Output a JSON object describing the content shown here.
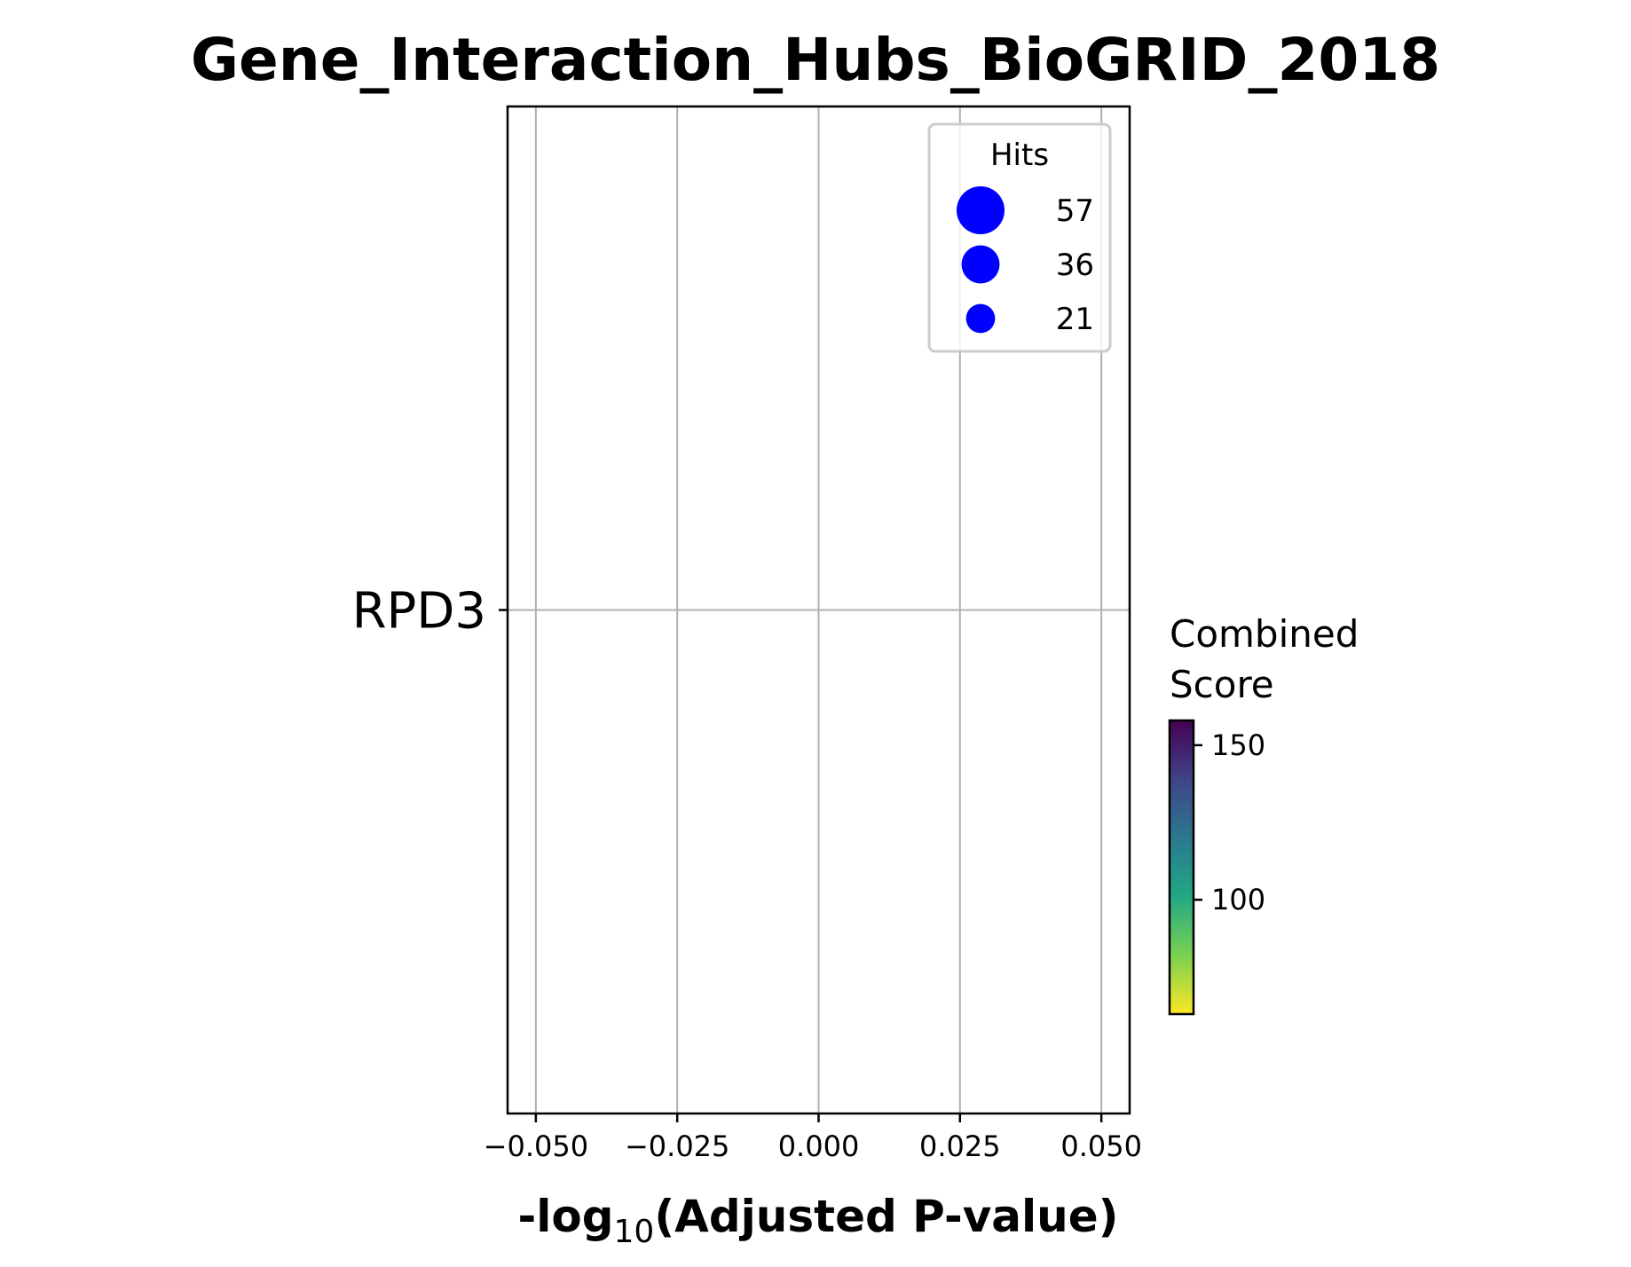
{
  "chart_data": {
    "type": "scatter",
    "title": "Gene_Interaction_Hubs_BioGRID_2018",
    "xlabel": {
      "prefix": "-log",
      "subscript": "10",
      "suffix": "(Adjusted P-value)"
    },
    "ylabel": "",
    "xlim": [
      -0.055,
      0.055
    ],
    "x_ticks": [
      -0.05,
      -0.025,
      0.0,
      0.025,
      0.05
    ],
    "x_tick_labels": [
      "−0.050",
      "−0.025",
      "0.000",
      "0.025",
      "0.050"
    ],
    "categories": [
      "RPD3"
    ],
    "points": [],
    "grid": true,
    "legend": {
      "title": "Hits",
      "placement": "top-right",
      "marker_color": "#0000ff",
      "entries": [
        {
          "label": "57",
          "value": 57
        },
        {
          "label": "36",
          "value": 36
        },
        {
          "label": "21",
          "value": 21
        }
      ]
    },
    "colorbar": {
      "title_line1": "Combined",
      "title_line2": "Score",
      "colormap": "viridis_r",
      "range": [
        63,
        158
      ],
      "ticks": [
        100,
        150
      ],
      "tick_labels": [
        "100",
        "150"
      ],
      "colors": [
        "#fde725",
        "#7ad151",
        "#22a884",
        "#2a788e",
        "#414487",
        "#440154"
      ]
    }
  }
}
